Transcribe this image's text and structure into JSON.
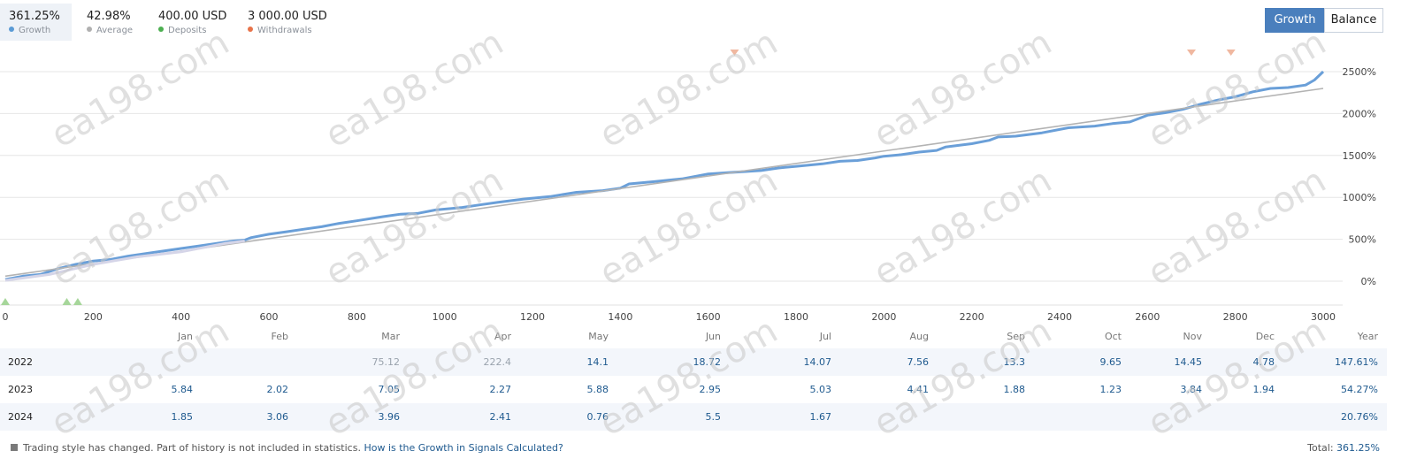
{
  "stats": [
    {
      "value": "361.25%",
      "label": "Growth",
      "color": "#5b9bd5"
    },
    {
      "value": "42.98%",
      "label": "Average",
      "color": "#b0b0b0"
    },
    {
      "value": "400.00 USD",
      "label": "Deposits",
      "color": "#4caf50"
    },
    {
      "value": "3 000.00 USD",
      "label": "Withdrawals",
      "color": "#e8734a"
    }
  ],
  "toggle": {
    "growth_label": "Growth",
    "balance_label": "Balance"
  },
  "chart_data": {
    "type": "line",
    "x_ticks": [
      "0",
      "200",
      "400",
      "600",
      "800",
      "1000",
      "1200",
      "1400",
      "1600",
      "1800",
      "2000",
      "2200",
      "2400",
      "2600",
      "2800",
      "3000"
    ],
    "y_ticks": [
      "0%",
      "500%",
      "1000%",
      "1500%",
      "2000%",
      "2500%"
    ],
    "xlim": [
      0,
      3050
    ],
    "ylim": [
      -180,
      2750
    ],
    "grid": true,
    "series": [
      {
        "color": "#6a9fd8",
        "points": [
          [
            0,
            20
          ],
          [
            40,
            60
          ],
          [
            80,
            80
          ],
          [
            120,
            150
          ],
          [
            160,
            200
          ],
          [
            200,
            240
          ],
          [
            240,
            260
          ],
          [
            280,
            300
          ],
          [
            320,
            330
          ],
          [
            360,
            360
          ],
          [
            400,
            390
          ],
          [
            440,
            420
          ],
          [
            480,
            450
          ],
          [
            520,
            480
          ],
          [
            545,
            490
          ],
          [
            560,
            520
          ],
          [
            600,
            560
          ],
          [
            640,
            590
          ],
          [
            680,
            620
          ],
          [
            720,
            650
          ],
          [
            760,
            690
          ],
          [
            800,
            720
          ],
          [
            860,
            770
          ],
          [
            900,
            800
          ],
          [
            940,
            810
          ],
          [
            980,
            850
          ],
          [
            1040,
            880
          ],
          [
            1080,
            910
          ],
          [
            1120,
            940
          ],
          [
            1180,
            980
          ],
          [
            1240,
            1010
          ],
          [
            1300,
            1060
          ],
          [
            1360,
            1080
          ],
          [
            1400,
            1110
          ],
          [
            1420,
            1160
          ],
          [
            1480,
            1190
          ],
          [
            1540,
            1220
          ],
          [
            1600,
            1280
          ],
          [
            1660,
            1300
          ],
          [
            1720,
            1320
          ],
          [
            1760,
            1350
          ],
          [
            1800,
            1370
          ],
          [
            1860,
            1400
          ],
          [
            1900,
            1430
          ],
          [
            1940,
            1440
          ],
          [
            1980,
            1470
          ],
          [
            2000,
            1490
          ],
          [
            2040,
            1510
          ],
          [
            2080,
            1540
          ],
          [
            2120,
            1560
          ],
          [
            2140,
            1600
          ],
          [
            2200,
            1640
          ],
          [
            2240,
            1680
          ],
          [
            2260,
            1720
          ],
          [
            2300,
            1730
          ],
          [
            2360,
            1770
          ],
          [
            2420,
            1830
          ],
          [
            2480,
            1850
          ],
          [
            2520,
            1880
          ],
          [
            2560,
            1900
          ],
          [
            2600,
            1980
          ],
          [
            2640,
            2010
          ],
          [
            2680,
            2050
          ],
          [
            2720,
            2110
          ],
          [
            2760,
            2160
          ],
          [
            2800,
            2200
          ],
          [
            2840,
            2260
          ],
          [
            2880,
            2300
          ],
          [
            2920,
            2310
          ],
          [
            2960,
            2340
          ],
          [
            2980,
            2400
          ],
          [
            3000,
            2500
          ]
        ]
      },
      {
        "color": "#b3b3b3",
        "points": [
          [
            0,
            60
          ],
          [
            3000,
            2300
          ]
        ]
      },
      {
        "color": "#d5d5e8",
        "points": [
          [
            0,
            10
          ],
          [
            100,
            80
          ],
          [
            200,
            200
          ],
          [
            300,
            290
          ],
          [
            400,
            350
          ],
          [
            500,
            450
          ],
          [
            545,
            480
          ]
        ]
      }
    ],
    "markers": [
      {
        "type": "deposit",
        "x": 0,
        "color": "#a6d69a"
      },
      {
        "type": "deposit",
        "x": 140,
        "color": "#a6d69a"
      },
      {
        "type": "deposit",
        "x": 165,
        "color": "#a6d69a"
      },
      {
        "type": "withdrawal",
        "x": 1660,
        "color": "#f0b8a0"
      },
      {
        "type": "withdrawal",
        "x": 2700,
        "color": "#f0b8a0"
      },
      {
        "type": "withdrawal",
        "x": 2790,
        "color": "#f0b8a0"
      }
    ]
  },
  "watermark": "ea198.com",
  "table": {
    "months": [
      "Jan",
      "Feb",
      "Mar",
      "Apr",
      "May",
      "Jun",
      "Jul",
      "Aug",
      "Sep",
      "Oct",
      "Nov",
      "Dec"
    ],
    "year_header": "Year",
    "rows": [
      {
        "year": "2022",
        "values": [
          "",
          "",
          "75.12",
          "222.4",
          "14.1",
          "18.72",
          "14.07",
          "7.56",
          "13.3",
          "9.65",
          "14.45",
          "4.78"
        ],
        "faded": [
          2,
          3
        ],
        "total": "147.61%"
      },
      {
        "year": "2023",
        "values": [
          "5.84",
          "2.02",
          "7.05",
          "2.27",
          "5.88",
          "2.95",
          "5.03",
          "4.41",
          "1.88",
          "1.23",
          "3.84",
          "1.94"
        ],
        "faded": [],
        "total": "54.27%"
      },
      {
        "year": "2024",
        "values": [
          "1.85",
          "3.06",
          "3.96",
          "2.41",
          "0.76",
          "5.5",
          "1.67",
          "",
          "",
          "",
          "",
          ""
        ],
        "faded": [],
        "total": "20.76%"
      }
    ]
  },
  "footer": {
    "note": "Trading style has changed. Part of history is not included in statistics.",
    "link": "How is the Growth in Signals Calculated?",
    "total_label": "Total:",
    "total_value": "361.25%"
  }
}
